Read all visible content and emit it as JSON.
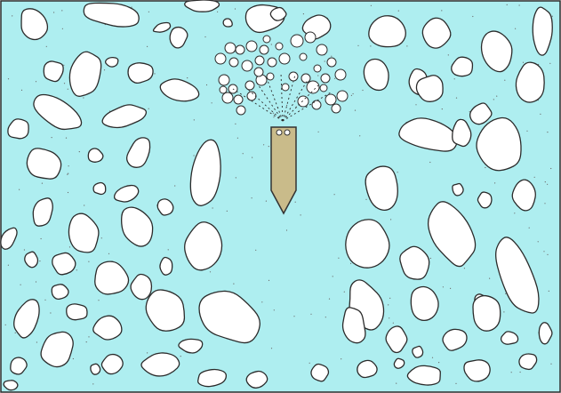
{
  "colors": {
    "water": "#aeeef0",
    "ice": "#ffffff",
    "outline": "#2b2b2b",
    "vessel_fill": "#c9bb8a",
    "vessel_outline": "#333333",
    "speck": "#6a6a6a"
  },
  "elements": {
    "water": "water-background",
    "ice_floes": "ice-floe",
    "bubbles": "air-bubble",
    "jets": "bubbler-jet",
    "vessel": "vessel-hull-icon"
  }
}
